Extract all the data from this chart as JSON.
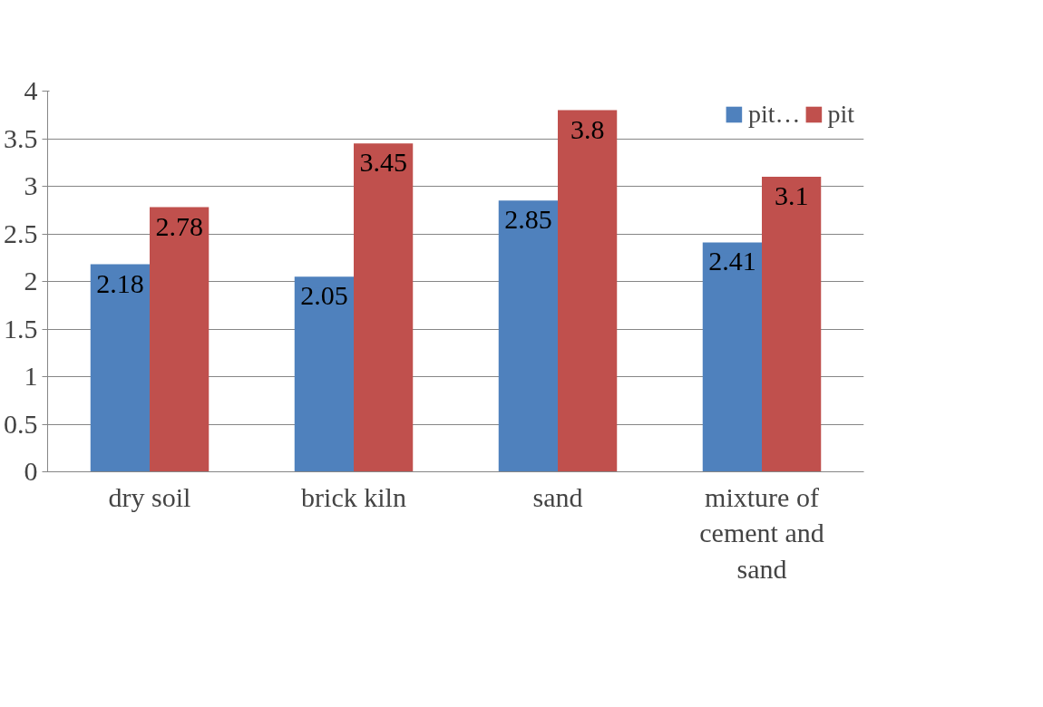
{
  "chart_data": {
    "type": "bar",
    "categories": [
      "dry soil",
      "brick kiln",
      "sand",
      "mixture of cement and sand"
    ],
    "series": [
      {
        "name": "pit…",
        "color": "#4f81bd",
        "values": [
          2.18,
          2.05,
          2.85,
          2.41
        ]
      },
      {
        "name": "pit",
        "color": "#c0504d",
        "values": [
          2.78,
          3.45,
          3.8,
          3.1
        ]
      }
    ],
    "ylim": [
      0,
      4
    ],
    "yticks": [
      0,
      0.5,
      1,
      1.5,
      2,
      2.5,
      3,
      3.5,
      4
    ],
    "grid": "y",
    "legend": "top right",
    "data_labels": true
  }
}
